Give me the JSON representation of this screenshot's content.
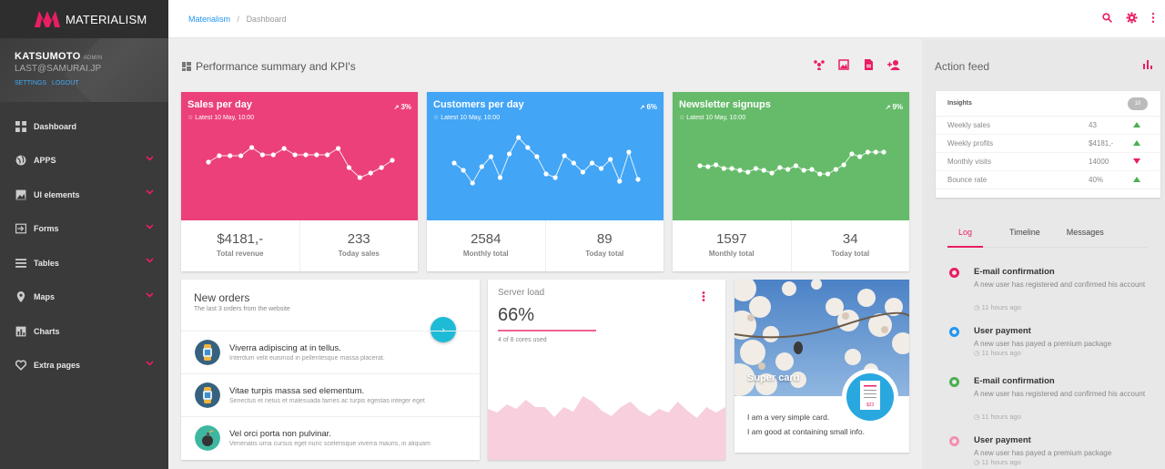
{
  "brand": {
    "name": "MATERIALISM",
    "accent": "#e91e63"
  },
  "profile": {
    "name": "KATSUMOTO",
    "role": "ADMIN",
    "email": "LAST@SAMURAI.JP",
    "settings": "SETTINGS",
    "logout": "LOGOUT"
  },
  "nav": [
    {
      "label": "Dashboard",
      "icon": "dashboard-icon",
      "expandable": false
    },
    {
      "label": "APPS",
      "icon": "globe-icon",
      "expandable": true
    },
    {
      "label": "UI elements",
      "icon": "image-icon",
      "expandable": true
    },
    {
      "label": "Forms",
      "icon": "forms-icon",
      "expandable": true
    },
    {
      "label": "Tables",
      "icon": "list-icon",
      "expandable": true
    },
    {
      "label": "Maps",
      "icon": "map-pin-icon",
      "expandable": true
    },
    {
      "label": "Charts",
      "icon": "bar-chart-icon",
      "expandable": false
    },
    {
      "label": "Extra pages",
      "icon": "heart-icon",
      "expandable": true
    }
  ],
  "breadcrumb": {
    "root": "Materialism",
    "sep": "/",
    "current": "Dashboard"
  },
  "section": {
    "title": "Performance summary and KPI's"
  },
  "kpis": [
    {
      "title": "Sales per day",
      "subtitle": "Latest 10 May, 10:00",
      "pct": "3%",
      "color": "#ec407a",
      "points": [
        77,
        70,
        70,
        70,
        61,
        69,
        69,
        62,
        69,
        69,
        69,
        69,
        62,
        83,
        94,
        89,
        83,
        75
      ],
      "left_value": "$4181,-",
      "left_label": "Total revenue",
      "right_value": "233",
      "right_label": "Today sales"
    },
    {
      "title": "Customers per day",
      "subtitle": "Latest 10 May, 10:00",
      "pct": "6%",
      "color": "#42a5f5",
      "points": [
        78,
        86,
        100,
        82,
        71,
        94,
        68,
        50,
        61,
        71,
        90,
        94,
        70,
        78,
        88,
        78,
        84,
        74,
        98,
        66,
        96
      ],
      "left_value": "2584",
      "left_label": "Monthly total",
      "right_value": "89",
      "right_label": "Today total"
    },
    {
      "title": "Newsletter signups",
      "subtitle": "Latest 10 May, 10:00",
      "pct": "9%",
      "color": "#66bb6a",
      "points": [
        81,
        82,
        80,
        84,
        84,
        86,
        88,
        84,
        86,
        89,
        83,
        85,
        81,
        86,
        85,
        90,
        90,
        85,
        80,
        68,
        71,
        66,
        66,
        66
      ],
      "left_value": "1597",
      "left_label": "Monthly total",
      "right_value": "34",
      "right_label": "Today total"
    }
  ],
  "orders": {
    "title": "New orders",
    "subtitle": "The last 3 orders from the website",
    "items": [
      {
        "title": "Viverra adipiscing at in tellus.",
        "desc": "Interdum velit euismod in pellentesque massa placerat.",
        "avatar": "watch-icon"
      },
      {
        "title": "Vitae turpis massa sed elementum.",
        "desc": "Senectus et netus et malesuada fames ac turpis egestas integer eget",
        "avatar": "watch-icon"
      },
      {
        "title": "Vel orci porta non pulvinar.",
        "desc": "Venenatis urna cursus eget nunc scelerisque viverra mauris, in aliquam",
        "avatar": "bomb-icon"
      }
    ]
  },
  "server": {
    "title": "Server load",
    "value": "66%",
    "sub": "4 of 8 cores used",
    "load_fraction": 0.66,
    "area": [
      30,
      34,
      25,
      30,
      20,
      28,
      28,
      39,
      28,
      33,
      16,
      22,
      32,
      38,
      28,
      22,
      32,
      38,
      30,
      34,
      22,
      32,
      40,
      28,
      34,
      28
    ]
  },
  "card": {
    "title": "Super card",
    "line1": "I am a very simple card.",
    "line2": "I am good at containing small info.",
    "badge": "$23"
  },
  "feed": {
    "title": "Action feed"
  },
  "insights": {
    "title": "Insights",
    "badge": "10",
    "rows": [
      {
        "label": "Weekly sales",
        "value": "43",
        "trend": "up"
      },
      {
        "label": "Weekly profits",
        "value": "$4181,-",
        "trend": "up"
      },
      {
        "label": "Monthly visits",
        "value": "14000",
        "trend": "down"
      },
      {
        "label": "Bounce rate",
        "value": "40%",
        "trend": "up"
      }
    ]
  },
  "tabs": [
    "Log",
    "Timeline",
    "Messages"
  ],
  "log": [
    {
      "title": "E-mail confirmation",
      "desc": "A new user has registered and confirmed his account",
      "when": "11 hours ago",
      "color": "#e91e63"
    },
    {
      "title": "User payment",
      "desc": "A new user has payed a premium package",
      "when": "11 hours ago",
      "color": "#2196f3"
    },
    {
      "title": "E-mail confirmation",
      "desc": "A new user has registered and confirmed his account",
      "when": "11 hours ago",
      "color": "#4caf50"
    },
    {
      "title": "User payment",
      "desc": "A new user has payed a premium package",
      "when": "11 hours ago",
      "color": "#f48fb1"
    }
  ]
}
